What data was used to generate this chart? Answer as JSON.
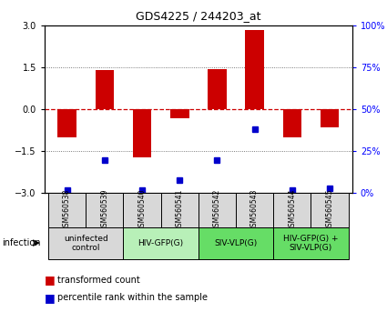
{
  "title": "GDS4225 / 244203_at",
  "samples": [
    "GSM560538",
    "GSM560539",
    "GSM560540",
    "GSM560541",
    "GSM560542",
    "GSM560543",
    "GSM560544",
    "GSM560545"
  ],
  "bar_values": [
    -1.0,
    1.4,
    -1.7,
    -0.3,
    1.45,
    2.85,
    -1.0,
    -0.65
  ],
  "dot_values_pct": [
    2,
    20,
    2,
    8,
    20,
    38,
    2,
    3
  ],
  "ylim": [
    -3,
    3
  ],
  "yticks_left": [
    -3,
    -1.5,
    0,
    1.5,
    3
  ],
  "right_tick_labels": [
    "0%",
    "25%",
    "50%",
    "75%",
    "100%"
  ],
  "bar_color": "#cc0000",
  "dot_color": "#0000cc",
  "zero_line_color": "#cc0000",
  "grid_line_color": "#555555",
  "bg_color": "#ffffff",
  "plot_bg": "#ffffff",
  "groups": [
    {
      "label": "uninfected\ncontrol",
      "start": 0,
      "end": 2,
      "color": "#d8d8d8"
    },
    {
      "label": "HIV-GFP(G)",
      "start": 2,
      "end": 4,
      "color": "#b8f0b8"
    },
    {
      "label": "SIV-VLP(G)",
      "start": 4,
      "end": 6,
      "color": "#66dd66"
    },
    {
      "label": "HIV-GFP(G) +\nSIV-VLP(G)",
      "start": 6,
      "end": 8,
      "color": "#66dd66"
    }
  ],
  "infection_label": "infection",
  "legend_red_label": "transformed count",
  "legend_blue_label": "percentile rank within the sample"
}
